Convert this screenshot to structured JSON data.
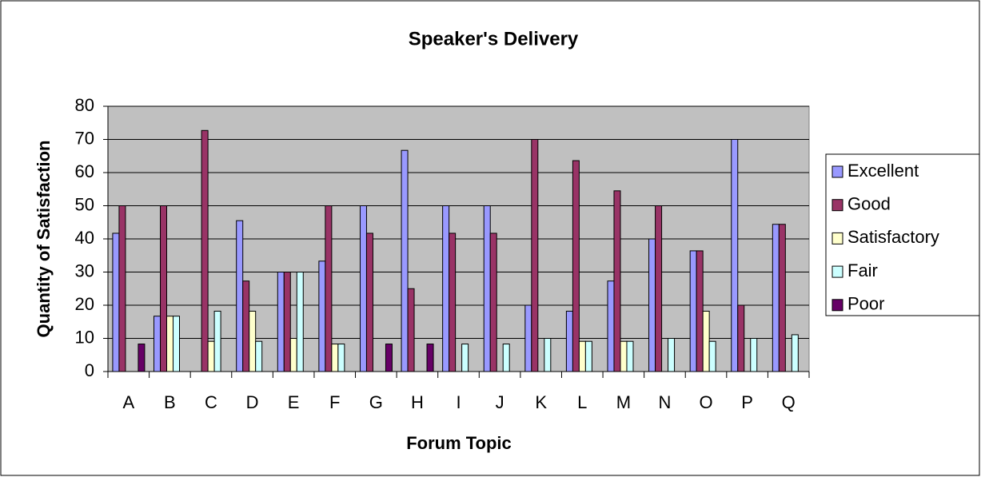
{
  "chart_data": {
    "type": "bar",
    "title": "Speaker's Delivery",
    "x_label": "Forum Topic",
    "y_label": "Quantity of Satisfaction",
    "categories": [
      "A",
      "B",
      "C",
      "D",
      "E",
      "F",
      "G",
      "H",
      "I",
      "J",
      "K",
      "L",
      "M",
      "N",
      "O",
      "P",
      "Q"
    ],
    "series": [
      {
        "name": "Excellent",
        "color": "#9999ff",
        "values": [
          41.7,
          16.7,
          0,
          45.5,
          30,
          33.3,
          50,
          66.7,
          50,
          50,
          20,
          18.2,
          27.3,
          40,
          36.4,
          70,
          44.4
        ]
      },
      {
        "name": "Good",
        "color": "#993366",
        "values": [
          50,
          50,
          72.7,
          27.3,
          30,
          50,
          41.7,
          25,
          41.7,
          41.7,
          70,
          63.6,
          54.5,
          50,
          36.4,
          20,
          44.4
        ]
      },
      {
        "name": "Satisfactory",
        "color": "#ffffcc",
        "values": [
          0,
          16.7,
          9.1,
          18.2,
          10,
          8.3,
          0,
          0,
          0,
          0,
          0,
          9.1,
          9.1,
          0,
          18.2,
          0,
          0
        ]
      },
      {
        "name": "Fair",
        "color": "#ccffff",
        "values": [
          0,
          16.7,
          18.2,
          9.1,
          30,
          8.3,
          0,
          0,
          8.3,
          8.3,
          10,
          9.1,
          9.1,
          10,
          9.1,
          10,
          11.1
        ]
      },
      {
        "name": "Poor",
        "color": "#660066",
        "values": [
          8.3,
          0,
          0,
          0,
          0,
          0,
          8.3,
          8.3,
          0,
          0,
          0,
          0,
          0,
          0,
          0,
          0,
          0
        ]
      }
    ],
    "ylim": [
      0,
      80
    ],
    "yticks": [
      0,
      10,
      20,
      30,
      40,
      50,
      60,
      70,
      80
    ],
    "grid": true,
    "legend": "right"
  }
}
